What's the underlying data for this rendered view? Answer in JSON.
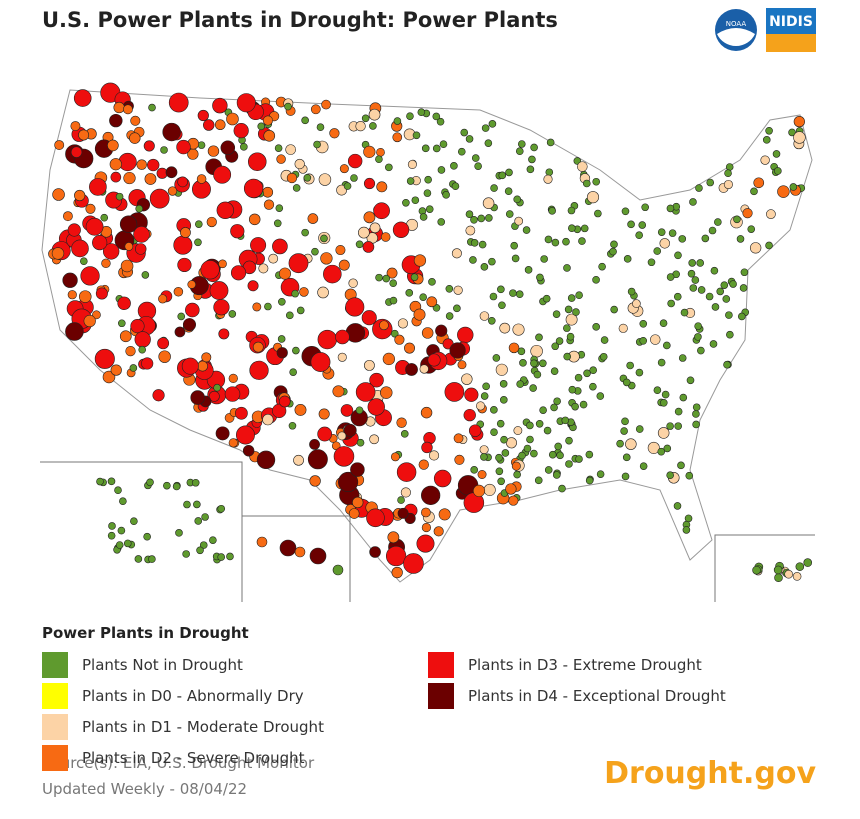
{
  "header": {
    "title": "U.S. Power Plants in Drought: Power Plants",
    "logos": [
      "NOAA",
      "NIDIS"
    ]
  },
  "legend": {
    "title": "Power Plants in Drought",
    "items": [
      {
        "label": "Plants Not in Drought",
        "color": "#5f9a2e"
      },
      {
        "label": "Plants in D0 - Abnormally Dry",
        "color": "#ffff00"
      },
      {
        "label": "Plants in D1 - Moderate Drought",
        "color": "#fcd3a6"
      },
      {
        "label": "Plants in D2 - Severe Drought",
        "color": "#f76a13"
      },
      {
        "label": "Plants in D3 - Extreme Drought",
        "color": "#ee0e0e"
      },
      {
        "label": "Plants in D4 - Exceptional Drought",
        "color": "#6b0000"
      }
    ]
  },
  "footer": {
    "source": "Source(s): EIA, U.S. Drought Monitor",
    "updated": "Updated Weekly - 08/04/22",
    "brand": "Drought.gov"
  }
}
